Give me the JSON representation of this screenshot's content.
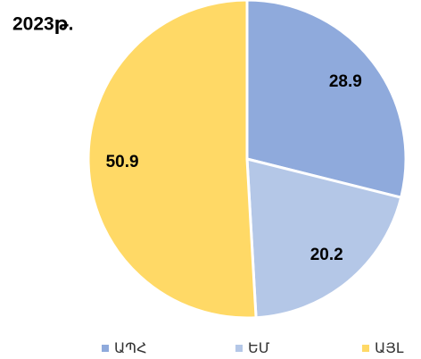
{
  "chart_data": {
    "type": "pie",
    "title": "2023թ.",
    "categories": [
      "ԱՊՀ",
      "ԵՄ",
      "ԱՅԼ"
    ],
    "values": [
      28.9,
      20.2,
      50.9
    ],
    "colors": [
      "#8faadc",
      "#b4c7e7",
      "#ffd966"
    ],
    "legend": "bottom"
  }
}
